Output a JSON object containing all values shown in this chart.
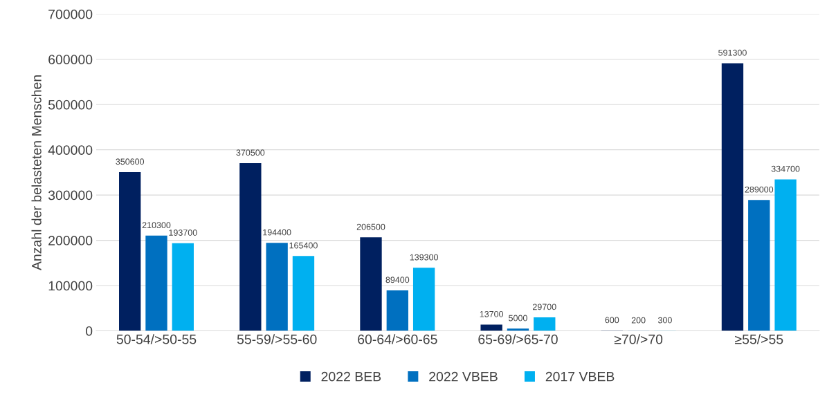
{
  "chart_data": {
    "type": "bar",
    "ylabel": "Anzahl der belasteten Menschen",
    "categories": [
      "50-54/>50-55",
      "55-59/>55-60",
      "60-64/>60-65",
      "65-69/>65-70",
      "≥70/>70",
      "≥55/>55"
    ],
    "series": [
      {
        "name": "2022 BEB",
        "color": "#002060",
        "values": [
          350600,
          370500,
          206500,
          13700,
          600,
          591300
        ]
      },
      {
        "name": "2022 VBEB",
        "color": "#0070c0",
        "values": [
          210300,
          194400,
          89400,
          5000,
          200,
          289000
        ]
      },
      {
        "name": "2017 VBEB",
        "color": "#00b0f0",
        "values": [
          193700,
          165400,
          139300,
          29700,
          300,
          334700
        ]
      }
    ],
    "ylim": [
      0,
      700000
    ],
    "yticks": [
      0,
      100000,
      200000,
      300000,
      400000,
      500000,
      600000,
      700000
    ],
    "grid": "y",
    "legend": "bottom",
    "data_labels": true
  }
}
